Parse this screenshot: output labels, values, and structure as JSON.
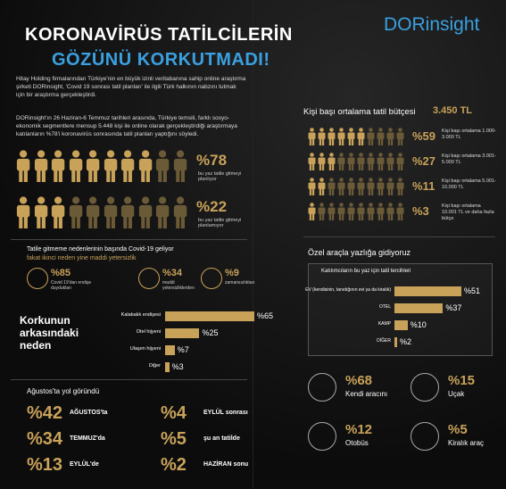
{
  "header": {
    "title_line1": "KORONAVİRÜS TATİLCİLERİN",
    "title_line2": "GÖZÜNÜ KORKUTMADI!",
    "brand": "DORinsight"
  },
  "intro": [
    "Hitay Holding firmalarından Türkiye'nin en büyük izinli veritabanına sahip online araştırma şirketi DORinsight, 'Covid 19 sonrası tatil planları' ile ilgili Türk halkının nabzını tutmak için bir araştırma gerçekleştirdi.",
    "DORinsight'ın 26 Haziran-6 Temmuz tarihleri arasında, Türkiye temsili, farklı sosyo-ekonomik segmentlere mensup 5.448 kişi ile online olarak gerçekleştirdiği araştırmaya katılanların %78'i koronavirüs sonrasında tatil planları yaptığını söyledi."
  ],
  "plans": [
    {
      "value": 78,
      "value_label": "%78",
      "text": "bu yaz tatile gitmeyi planlıyor"
    },
    {
      "value": 22,
      "value_label": "%22",
      "text": "bu yaz tatile gitmeyi planlamıyor"
    }
  ],
  "budget": {
    "title": "Kişi başı ortalama tatil bütçesi",
    "average": "3.450 TL",
    "rows": [
      {
        "value": 59,
        "value_label": "%59",
        "text": "Kişi başı ortalama 1.000-3.000 TL"
      },
      {
        "value": 27,
        "value_label": "%27",
        "text": "Kişi başı ortalama 3.001-5.000 TL"
      },
      {
        "value": 11,
        "value_label": "%11",
        "text": "Kişi başı ortalama 5.001-10.000 TL"
      },
      {
        "value": 3,
        "value_label": "%3",
        "text": "Kişi başı ortalama 10.001 TL ve daha fazla bütçe"
      }
    ]
  },
  "reasons": {
    "title": "Tatile gitmeme nedenlerinin başında Covid-19 geliyor",
    "subtitle": "fakat ikinci neden yine maddi yetersizlik",
    "items": [
      {
        "value": 85,
        "value_label": "%85",
        "text": "Covid 19'dan endişe duydukları"
      },
      {
        "value": 34,
        "value_label": "%34",
        "text": "maddi yetersizliklerden"
      },
      {
        "value": 9,
        "value_label": "%9",
        "text": "zamansızlıktan"
      }
    ]
  },
  "chart_data": [
    {
      "type": "bar",
      "title": "Korkunun arkasındaki neden",
      "color": "#c9a25a",
      "categories": [
        "Kalabalık endişesi",
        "Otel hijyeni",
        "Ulaşım hijyeni",
        "Diğer"
      ],
      "values": [
        65,
        25,
        7,
        3
      ],
      "value_labels": [
        "%65",
        "%25",
        "%7",
        "%3"
      ]
    },
    {
      "type": "bar",
      "title": "Katılımcıların bu yaz için tatil tercihleri",
      "color": "#c9a25a",
      "categories": [
        "EV (kendisinin, tanıdığının evi ya da kiralık)",
        "OTEL",
        "KAMP",
        "DİĞER"
      ],
      "values": [
        51,
        37,
        10,
        2
      ],
      "value_labels": [
        "%51",
        "%37",
        "%10",
        "%2"
      ]
    }
  ],
  "timing": {
    "title": "Ağustos'ta yol göründü",
    "items": [
      {
        "value": 42,
        "value_label": "%42",
        "text": "AĞUSTOS'ta"
      },
      {
        "value": 34,
        "value_label": "%34",
        "text": "TEMMUZ'da"
      },
      {
        "value": 13,
        "value_label": "%13",
        "text": "EYLÜL'de"
      },
      {
        "value": 4,
        "value_label": "%4",
        "text": "EYLÜL sonrası"
      },
      {
        "value": 5,
        "value_label": "%5",
        "text": "şu an tatilde"
      },
      {
        "value": 2,
        "value_label": "%2",
        "text": "HAZİRAN sonu"
      }
    ]
  },
  "transport": {
    "title": "Özel araçla yazlığa gidiyoruz",
    "items": [
      {
        "value": 68,
        "value_label": "%68",
        "text": "Kendi aracını"
      },
      {
        "value": 15,
        "value_label": "%15",
        "text": "Uçak"
      },
      {
        "value": 12,
        "value_label": "%12",
        "text": "Otobüs"
      },
      {
        "value": 5,
        "value_label": "%5",
        "text": "Kiralık araç"
      }
    ]
  }
}
